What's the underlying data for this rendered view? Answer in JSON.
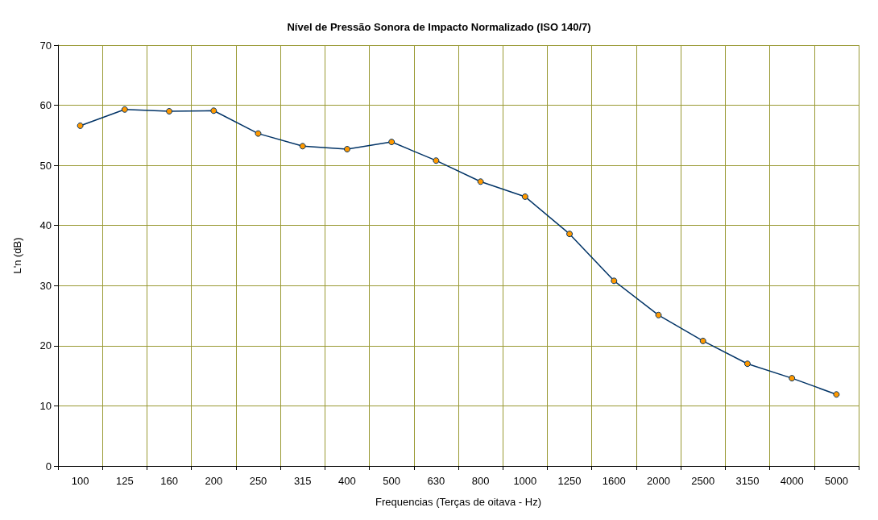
{
  "chart_data": {
    "type": "line",
    "title": "Nível de Pressão Sonora de Impacto Normalizado (ISO 140/7)",
    "xlabel": "Frequencias (Terças de oitava - Hz)",
    "ylabel": "L'n (dB)",
    "categories": [
      "100",
      "125",
      "160",
      "200",
      "250",
      "315",
      "400",
      "500",
      "630",
      "800",
      "1000",
      "1250",
      "1600",
      "2000",
      "2500",
      "3150",
      "4000",
      "5000"
    ],
    "series": [
      {
        "color": "#003366",
        "values": [
          56.6,
          59.3,
          59.0,
          59.1,
          55.3,
          53.2,
          52.7,
          53.9,
          50.8,
          47.3,
          44.8,
          38.6,
          30.8,
          25.1,
          20.8,
          17.0,
          14.6,
          11.9
        ]
      }
    ],
    "ylim": [
      0,
      70
    ],
    "yticks": [
      0,
      10,
      20,
      30,
      40,
      50,
      60,
      70
    ],
    "grid": true,
    "marker": "circle",
    "line_style": "solid"
  }
}
